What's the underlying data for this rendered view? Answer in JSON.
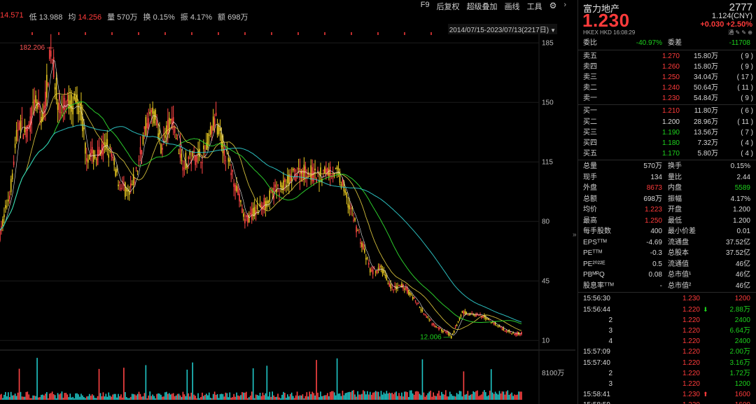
{
  "top": {
    "stats": [
      {
        "label": "",
        "value": "14.571",
        "color": "red"
      },
      {
        "label": "低",
        "value": "13.988",
        "color": "white"
      },
      {
        "label": "均",
        "value": "14.256",
        "color": "red"
      },
      {
        "label": "量",
        "value": "570万",
        "color": "white"
      },
      {
        "label": "换",
        "value": "0.15%",
        "color": "white"
      },
      {
        "label": "振",
        "value": "4.17%",
        "color": "white"
      },
      {
        "label": "额",
        "value": "698万",
        "color": "white"
      }
    ],
    "menu": [
      "F9",
      "后复权",
      "超级叠加",
      "画线",
      "工具"
    ]
  },
  "chart_data": {
    "type": "candlestick",
    "date_range": "2014/07/15-2023/07/13(2217日)",
    "y_ticks": [
      "185",
      "150",
      "115",
      "80",
      "45",
      "10"
    ],
    "y_tick_values": [
      185,
      150,
      115,
      80,
      45,
      10
    ],
    "ylim": [
      6,
      188
    ],
    "annotations": [
      {
        "text": "182.206",
        "x_frac": 0.095,
        "y": 182.2
      },
      {
        "text": "12.006",
        "x_frac": 0.84,
        "y": 12.0
      }
    ],
    "volume_label": "8100万",
    "trend": [
      [
        0,
        72
      ],
      [
        0.02,
        100
      ],
      [
        0.035,
        140
      ],
      [
        0.05,
        130
      ],
      [
        0.065,
        150
      ],
      [
        0.08,
        140
      ],
      [
        0.095,
        182
      ],
      [
        0.11,
        145
      ],
      [
        0.13,
        150
      ],
      [
        0.15,
        148
      ],
      [
        0.16,
        120
      ],
      [
        0.18,
        118
      ],
      [
        0.2,
        125
      ],
      [
        0.22,
        105
      ],
      [
        0.24,
        95
      ],
      [
        0.255,
        110
      ],
      [
        0.27,
        135
      ],
      [
        0.285,
        145
      ],
      [
        0.3,
        125
      ],
      [
        0.32,
        140
      ],
      [
        0.34,
        115
      ],
      [
        0.36,
        118
      ],
      [
        0.38,
        120
      ],
      [
        0.4,
        140
      ],
      [
        0.42,
        120
      ],
      [
        0.44,
        100
      ],
      [
        0.455,
        80
      ],
      [
        0.47,
        85
      ],
      [
        0.49,
        90
      ],
      [
        0.51,
        97
      ],
      [
        0.53,
        102
      ],
      [
        0.55,
        108
      ],
      [
        0.57,
        110
      ],
      [
        0.59,
        106
      ],
      [
        0.61,
        110
      ],
      [
        0.63,
        108
      ],
      [
        0.65,
        90
      ],
      [
        0.67,
        70
      ],
      [
        0.69,
        50
      ],
      [
        0.71,
        52
      ],
      [
        0.73,
        40
      ],
      [
        0.75,
        42
      ],
      [
        0.77,
        35
      ],
      [
        0.79,
        25
      ],
      [
        0.81,
        18
      ],
      [
        0.83,
        15
      ],
      [
        0.84,
        12
      ],
      [
        0.86,
        27
      ],
      [
        0.88,
        25
      ],
      [
        0.9,
        24
      ],
      [
        0.92,
        20
      ],
      [
        0.94,
        16
      ],
      [
        0.96,
        14
      ]
    ]
  },
  "panel": {
    "name": "富力地产",
    "code": "2777",
    "price": "1.230",
    "cny": "1.124(CNY)",
    "change": "+0.030  +2.50%",
    "meta": "HKEX  HKD  16:08:29",
    "icons": "通 ✎ ✎ ⊕",
    "weibi_label": "委比",
    "weibi": "-40.97%",
    "weicha_label": "委差",
    "weicha": "-11708",
    "asks": [
      {
        "label": "卖五",
        "price": "1.270",
        "vol": "15.80万",
        "cnt": "( 9 )"
      },
      {
        "label": "卖四",
        "price": "1.260",
        "vol": "15.80万",
        "cnt": "( 9 )"
      },
      {
        "label": "卖三",
        "price": "1.250",
        "vol": "34.04万",
        "cnt": "( 17 )"
      },
      {
        "label": "卖二",
        "price": "1.240",
        "vol": "50.64万",
        "cnt": "( 11 )"
      },
      {
        "label": "卖一",
        "price": "1.230",
        "vol": "54.84万",
        "cnt": "( 9 )"
      }
    ],
    "bids": [
      {
        "label": "买一",
        "price": "1.210",
        "vol": "11.80万",
        "cnt": "( 6 )",
        "color": "red"
      },
      {
        "label": "买二",
        "price": "1.200",
        "vol": "28.96万",
        "cnt": "( 11 )",
        "color": "white"
      },
      {
        "label": "买三",
        "price": "1.190",
        "vol": "13.56万",
        "cnt": "( 7 )",
        "color": "green"
      },
      {
        "label": "买四",
        "price": "1.180",
        "vol": "7.32万",
        "cnt": "( 4 )",
        "color": "green"
      },
      {
        "label": "买五",
        "price": "1.170",
        "vol": "5.80万",
        "cnt": "( 4 )",
        "color": "green"
      }
    ],
    "stats": [
      {
        "k1": "总量",
        "v1": "570万",
        "c1": "white",
        "k2": "换手",
        "v2": "0.15%",
        "c2": "white"
      },
      {
        "k1": "现手",
        "v1": "134",
        "c1": "white",
        "k2": "量比",
        "v2": "2.44",
        "c2": "white"
      },
      {
        "k1": "外盘",
        "v1": "8673",
        "c1": "red",
        "k2": "内盘",
        "v2": "5589",
        "c2": "green"
      },
      {
        "k1": "总额",
        "v1": "698万",
        "c1": "white",
        "k2": "振幅",
        "v2": "4.17%",
        "c2": "white"
      },
      {
        "k1": "均价",
        "v1": "1.223",
        "c1": "red",
        "k2": "开盘",
        "v2": "1.200",
        "c2": "white"
      },
      {
        "k1": "最高",
        "v1": "1.250",
        "c1": "red",
        "k2": "最低",
        "v2": "1.200",
        "c2": "white"
      },
      {
        "k1": "每手股数",
        "v1": "400",
        "c1": "white",
        "k2": "最小价差",
        "v2": "0.01",
        "c2": "white"
      },
      {
        "k1": "EPSᵀᵀᴹ",
        "v1": "-4.69",
        "c1": "white",
        "k2": "流通盘",
        "v2": "37.52亿",
        "c2": "white"
      },
      {
        "k1": "PEᵀᵀᴹ",
        "v1": "-0.3",
        "c1": "white",
        "k2": "总股本",
        "v2": "37.52亿",
        "c2": "white"
      },
      {
        "k1": "PE²⁰²²ᴱ",
        "v1": "0.5",
        "c1": "white",
        "k2": "流通值",
        "v2": "46亿",
        "c2": "white"
      },
      {
        "k1": "PBᴹᴿQ",
        "v1": "0.08",
        "c1": "white",
        "k2": "总市值¹",
        "v2": "46亿",
        "c2": "white"
      },
      {
        "k1": "股息率ᵀᵀᴹ",
        "v1": "-",
        "c1": "white",
        "k2": "总市值²",
        "v2": "46亿",
        "c2": "white"
      }
    ],
    "trades": [
      {
        "time": "15:56:30",
        "indent": false,
        "price": "1.230",
        "arrow": "",
        "vol": "1200",
        "vcolor": "red"
      },
      {
        "time": "15:56:44",
        "indent": false,
        "price": "1.220",
        "arrow": "⬇",
        "acolor": "green",
        "vol": "2.88万",
        "vcolor": "green"
      },
      {
        "time": "2",
        "indent": true,
        "price": "1.220",
        "arrow": "",
        "vol": "2400",
        "vcolor": "green"
      },
      {
        "time": "3",
        "indent": true,
        "price": "1.220",
        "arrow": "",
        "vol": "6.64万",
        "vcolor": "green"
      },
      {
        "time": "4",
        "indent": true,
        "price": "1.220",
        "arrow": "",
        "vol": "2400",
        "vcolor": "green"
      },
      {
        "time": "15:57:09",
        "indent": false,
        "price": "1.220",
        "arrow": "",
        "vol": "2.00万",
        "vcolor": "green"
      },
      {
        "time": "15:57:40",
        "indent": false,
        "price": "1.220",
        "arrow": "",
        "vol": "3.16万",
        "vcolor": "green"
      },
      {
        "time": "2",
        "indent": true,
        "price": "1.220",
        "arrow": "",
        "vol": "1.72万",
        "vcolor": "green"
      },
      {
        "time": "3",
        "indent": true,
        "price": "1.220",
        "arrow": "",
        "vol": "1200",
        "vcolor": "green"
      },
      {
        "time": "15:58:41",
        "indent": false,
        "price": "1.230",
        "arrow": "⬆",
        "acolor": "red",
        "vol": "1600",
        "vcolor": "red"
      },
      {
        "time": "15:58:59",
        "indent": false,
        "price": "1.230",
        "arrow": "",
        "vol": "1600",
        "vcolor": "red"
      }
    ]
  }
}
